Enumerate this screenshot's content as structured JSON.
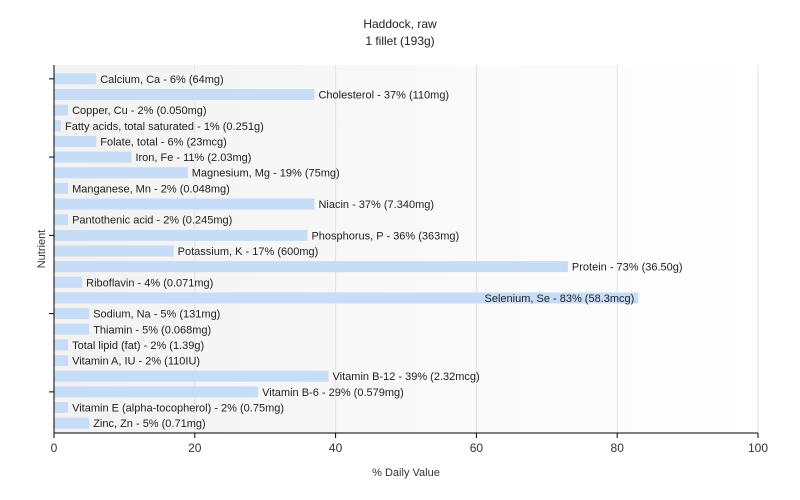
{
  "chart_data": {
    "type": "bar",
    "orientation": "horizontal",
    "title": "Haddock, raw",
    "subtitle": "1 fillet (193g)",
    "xlabel": "% Daily Value",
    "ylabel": "Nutrient",
    "xlim": [
      0,
      100
    ],
    "xticks": [
      0,
      20,
      40,
      60,
      80,
      100
    ],
    "grid": true,
    "bar_color": "#c6dcf7",
    "categories": [
      "Calcium, Ca",
      "Cholesterol",
      "Copper, Cu",
      "Fatty acids, total saturated",
      "Folate, total",
      "Iron, Fe",
      "Magnesium, Mg",
      "Manganese, Mn",
      "Niacin",
      "Pantothenic acid",
      "Phosphorus, P",
      "Potassium, K",
      "Protein",
      "Riboflavin",
      "Selenium, Se",
      "Sodium, Na",
      "Thiamin",
      "Total lipid (fat)",
      "Vitamin A, IU",
      "Vitamin B-12",
      "Vitamin B-6",
      "Vitamin E (alpha-tocopherol)",
      "Zinc, Zn"
    ],
    "values": [
      6,
      37,
      2,
      1,
      6,
      11,
      19,
      2,
      37,
      2,
      36,
      17,
      73,
      4,
      83,
      5,
      5,
      2,
      2,
      39,
      29,
      2,
      5
    ],
    "labels": [
      "Calcium, Ca - 6% (64mg)",
      "Cholesterol - 37% (110mg)",
      "Copper, Cu - 2% (0.050mg)",
      "Fatty acids, total saturated - 1% (0.251g)",
      "Folate, total - 6% (23mcg)",
      "Iron, Fe - 11% (2.03mg)",
      "Magnesium, Mg - 19% (75mg)",
      "Manganese, Mn - 2% (0.048mg)",
      "Niacin - 37% (7.340mg)",
      "Pantothenic acid - 2% (0.245mg)",
      "Phosphorus, P - 36% (363mg)",
      "Potassium, K - 17% (600mg)",
      "Protein - 73% (36.50g)",
      "Riboflavin - 4% (0.071mg)",
      "Selenium, Se - 83% (58.3mcg)",
      "Sodium, Na - 5% (131mg)",
      "Thiamin - 5% (0.068mg)",
      "Total lipid (fat) - 2% (1.39g)",
      "Vitamin A, IU - 2% (110IU)",
      "Vitamin B-12 - 39% (2.32mcg)",
      "Vitamin B-6 - 29% (0.579mg)",
      "Vitamin E (alpha-tocopherol) - 2% (0.75mg)",
      "Zinc, Zn - 5% (0.71mg)"
    ]
  }
}
